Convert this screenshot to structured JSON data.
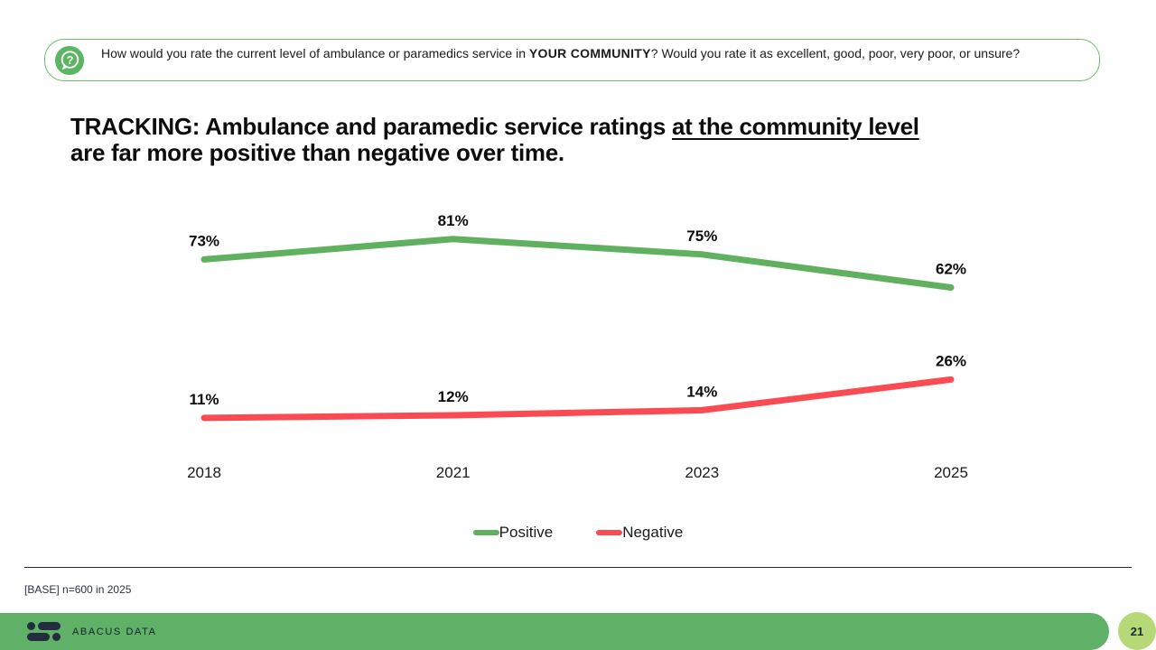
{
  "question": {
    "prefix": "How would you rate the current level of ambulance or paramedics service in ",
    "bold": "YOUR COMMUNITY",
    "suffix": "? Would you rate it as excellent, good, poor, very poor, or unsure?"
  },
  "title": {
    "line1_prefix": "TRACKING: Ambulance and paramedic service ratings ",
    "line1_underline": "at the community level",
    "line2": "are far more positive than negative over time."
  },
  "chart_data": {
    "type": "line",
    "title": "Ambulance and paramedic service ratings at the community level over time",
    "categories": [
      "2018",
      "2021",
      "2023",
      "2025"
    ],
    "series": [
      {
        "name": "Positive",
        "values": [
          73,
          81,
          75,
          62
        ],
        "color": "#5FB05F"
      },
      {
        "name": "Negative",
        "values": [
          11,
          12,
          14,
          26
        ],
        "color": "#FA4B52"
      }
    ],
    "data_label_suffix": "%",
    "xlabel": "",
    "ylabel": "",
    "ylim": [
      0,
      100
    ],
    "grid": false,
    "legend_position": "bottom"
  },
  "footer": {
    "base_note": "[BASE] n=600 in 2025"
  },
  "brand_bar": {
    "brand": "ABACUS DATA",
    "page_number": "21",
    "bar_color": "#5EB166",
    "badge_color": "#B6D877"
  }
}
